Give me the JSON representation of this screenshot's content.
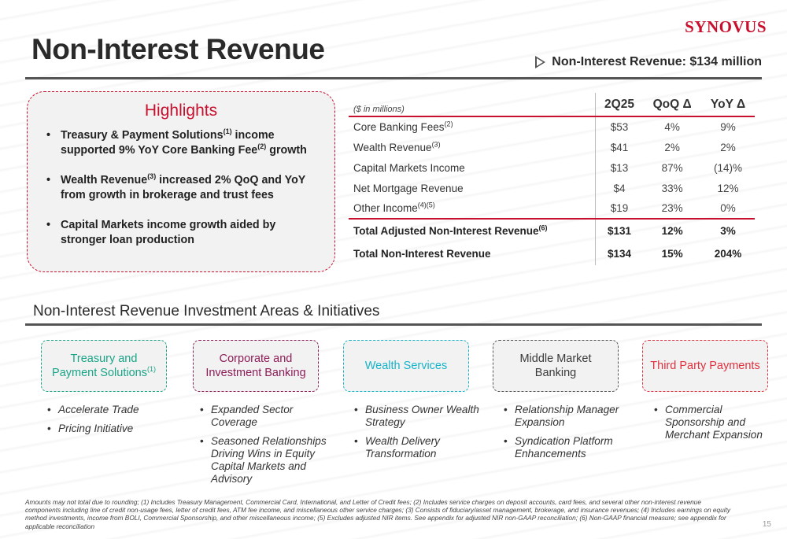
{
  "brand": {
    "logo_text": "SYNOVUS",
    "accent_color": "#c8102e"
  },
  "page": {
    "title": "Non-Interest Revenue",
    "number": "15"
  },
  "callout": {
    "text": "Non-Interest Revenue: $134 million",
    "icon": "play-triangle-icon"
  },
  "highlights": {
    "title": "Highlights",
    "items": [
      {
        "a": "Treasury & Payment Solutions",
        "sup1": "(1)",
        "b": " income supported 9% YoY Core Banking Fee",
        "sup2": "(2)",
        "c": " growth"
      },
      {
        "a": "Wealth Revenue",
        "sup1": "(3)",
        "b": " increased 2% QoQ and YoY from growth in brokerage and trust fees"
      },
      {
        "a": "Capital Markets income growth aided by stronger loan production"
      }
    ]
  },
  "table": {
    "unit_label": "($ in millions)",
    "columns": [
      "2Q25",
      "QoQ Δ",
      "YoY Δ"
    ],
    "rows": [
      {
        "label": "Core Banking Fees",
        "sup": "(2)",
        "values": [
          "$53",
          "4%",
          "9%"
        ]
      },
      {
        "label": "Wealth Revenue",
        "sup": "(3)",
        "values": [
          "$41",
          "2%",
          "2%"
        ]
      },
      {
        "label": "Capital Markets Income",
        "sup": "",
        "values": [
          "$13",
          "87%",
          "(14)%"
        ]
      },
      {
        "label": "Net Mortgage Revenue",
        "sup": "",
        "values": [
          "$4",
          "33%",
          "12%"
        ]
      },
      {
        "label": "Other Income",
        "sup": "(4)(5)",
        "values": [
          "$19",
          "23%",
          "0%"
        ]
      }
    ],
    "totals": [
      {
        "label": "Total Adjusted Non-Interest Revenue",
        "sup": "(6)",
        "values": [
          "$131",
          "12%",
          "3%"
        ]
      },
      {
        "label": "Total Non-Interest Revenue",
        "sup": "",
        "values": [
          "$134",
          "15%",
          "204%"
        ]
      }
    ]
  },
  "investment": {
    "title": "Non-Interest Revenue Investment Areas & Initiatives",
    "areas": [
      {
        "name": "Treasury and Payment Solutions",
        "sup": "(1)",
        "color": "#19a487",
        "items": [
          "Accelerate Trade",
          "Pricing Initiative"
        ]
      },
      {
        "name": "Corporate and Investment Banking",
        "sup": "",
        "color": "#8c1d57",
        "items": [
          "Expanded Sector Coverage",
          "Seasoned Relationships Driving Wins in Equity Capital Markets and Advisory"
        ]
      },
      {
        "name": "Wealth Services",
        "sup": "",
        "color": "#17b4c9",
        "items": [
          "Business Owner Wealth Strategy",
          "Wealth Delivery Transformation"
        ]
      },
      {
        "name": "Middle Market Banking",
        "sup": "",
        "color": "#3a3a3a",
        "items": [
          "Relationship Manager Expansion",
          "Syndication Platform Enhancements"
        ]
      },
      {
        "name": "Third Party Payments",
        "sup": "",
        "color": "#e0313e",
        "items": [
          "Commercial Sponsorship and Merchant Expansion"
        ]
      }
    ]
  },
  "footnote": "Amounts may not total due to rounding; (1) Includes Treasury Management, Commercial Card, International, and Letter of Credit fees; (2) Includes service charges on deposit accounts, card fees, and several other non-interest revenue components including line of credit non-usage fees, letter of credit fees, ATM fee income, and miscellaneous other service charges; (3) Consists of fiduciary/asset management, brokerage, and insurance revenues; (4) Includes earnings on equity method investments, income from BOLI, Commercial Sponsorship, and other miscellaneous income; (5) Excludes adjusted NIR items. See appendix for adjusted NIR non-GAAP reconciliation; (6) Non-GAAP financial measure; see appendix for applicable reconciliation"
}
